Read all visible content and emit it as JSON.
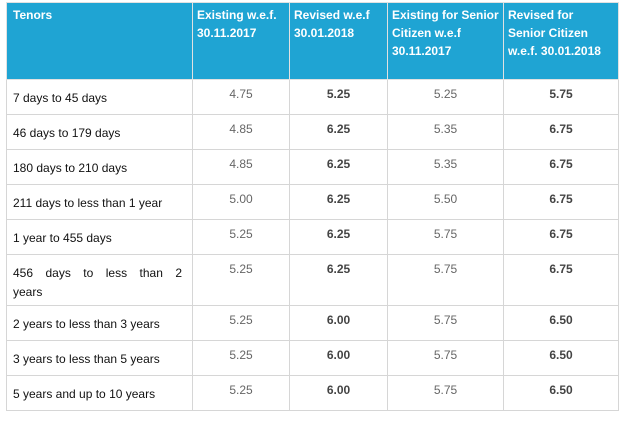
{
  "table": {
    "headers": [
      "Tenors",
      "Existing w.e.f. 30.11.2017",
      "Revised w.e.f 30.01.2018",
      "Existing for Senior Citizen w.e.f 30.11.2017",
      "Revised for Senior Citizen w.e.f. 30.01.2018"
    ],
    "rows": [
      [
        "7 days to 45 days",
        "4.75",
        "5.25",
        "5.25",
        "5.75"
      ],
      [
        "46 days to 179 days",
        "4.85",
        "6.25",
        "5.35",
        "6.75"
      ],
      [
        "180 days to 210 days",
        "4.85",
        "6.25",
        "5.35",
        "6.75"
      ],
      [
        "211 days to less than 1 year",
        "5.00",
        "6.25",
        "5.50",
        "6.75"
      ],
      [
        "1 year to 455 days",
        "5.25",
        "6.25",
        "5.75",
        "6.75"
      ],
      [
        "456 days to less than 2 years",
        "5.25",
        "6.25",
        "5.75",
        "6.75"
      ],
      [
        "2 years to less than 3 years",
        "5.25",
        "6.00",
        "5.75",
        "6.50"
      ],
      [
        "3 years to less than 5 years",
        "5.25",
        "6.00",
        "5.75",
        "6.50"
      ],
      [
        "5 years and up to 10 years",
        "5.25",
        "6.00",
        "5.75",
        "6.50"
      ]
    ]
  },
  "colors": {
    "header_background": "#1fa4d3",
    "header_text": "#ffffff",
    "border": "#d6d6d6"
  }
}
